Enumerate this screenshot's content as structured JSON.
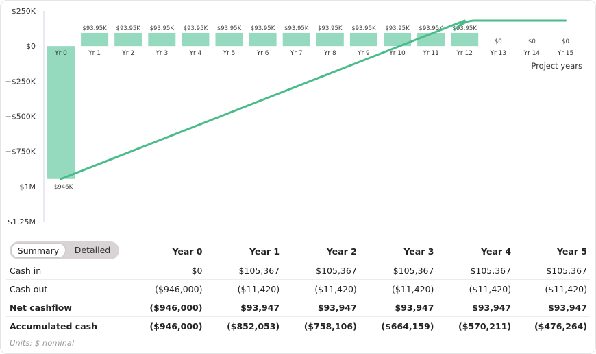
{
  "chart_data": {
    "type": "bar",
    "xlabel": "Project years",
    "ylabel": "",
    "ylim": [
      -1250000,
      250000
    ],
    "y_ticks": [
      250000,
      0,
      -250000,
      -500000,
      -750000,
      -1000000,
      -1250000
    ],
    "y_tick_labels": [
      "$250K",
      "$0",
      "−$250K",
      "−$500K",
      "−$750K",
      "−$1M",
      "−$1.25M"
    ],
    "categories": [
      "Yr 0",
      "Yr 1",
      "Yr 2",
      "Yr 3",
      "Yr 4",
      "Yr 5",
      "Yr 6",
      "Yr 7",
      "Yr 8",
      "Yr 9",
      "Yr 10",
      "Yr 11",
      "Yr 12",
      "Yr 13",
      "Yr 14",
      "Yr 15"
    ],
    "series": [
      {
        "type": "bar",
        "values": [
          -946000,
          93947,
          93947,
          93947,
          93947,
          93947,
          93947,
          93947,
          93947,
          93947,
          93947,
          93947,
          93947,
          0,
          0,
          0
        ],
        "data_labels": [
          "−$946K",
          "$93.95K",
          "$93.95K",
          "$93.95K",
          "$93.95K",
          "$93.95K",
          "$93.95K",
          "$93.95K",
          "$93.95K",
          "$93.95K",
          "$93.95K",
          "$93.95K",
          "$93.95K",
          "$0",
          "$0",
          "$0"
        ],
        "color": "#95d9be"
      },
      {
        "type": "line",
        "values": [
          -946000,
          -852053,
          -758106,
          -664159,
          -570211,
          -476264,
          -382317,
          -288370,
          -194423,
          -100476,
          -6529,
          87418,
          181365,
          181365,
          181365,
          181365
        ],
        "color": "#4cbb8a"
      }
    ],
    "grid": false
  },
  "toggle": {
    "summary": "Summary",
    "detailed": "Detailed"
  },
  "table": {
    "columns": [
      "Year 0",
      "Year 1",
      "Year 2",
      "Year 3",
      "Year 4",
      "Year 5"
    ],
    "rows": [
      {
        "label": "Cash in",
        "values": [
          "$0",
          "$105,367",
          "$105,367",
          "$105,367",
          "$105,367",
          "$105,367"
        ]
      },
      {
        "label": "Cash out",
        "values": [
          "($946,000)",
          "($11,420)",
          "($11,420)",
          "($11,420)",
          "($11,420)",
          "($11,420)"
        ]
      },
      {
        "label": "Net cashflow",
        "values": [
          "($946,000)",
          "$93,947",
          "$93,947",
          "$93,947",
          "$93,947",
          "$93,947"
        ]
      },
      {
        "label": "Accumulated cash",
        "values": [
          "($946,000)",
          "($852,053)",
          "($758,106)",
          "($664,159)",
          "($570,211)",
          "($476,264)"
        ]
      }
    ]
  },
  "units_note": "Units: $ nominal"
}
